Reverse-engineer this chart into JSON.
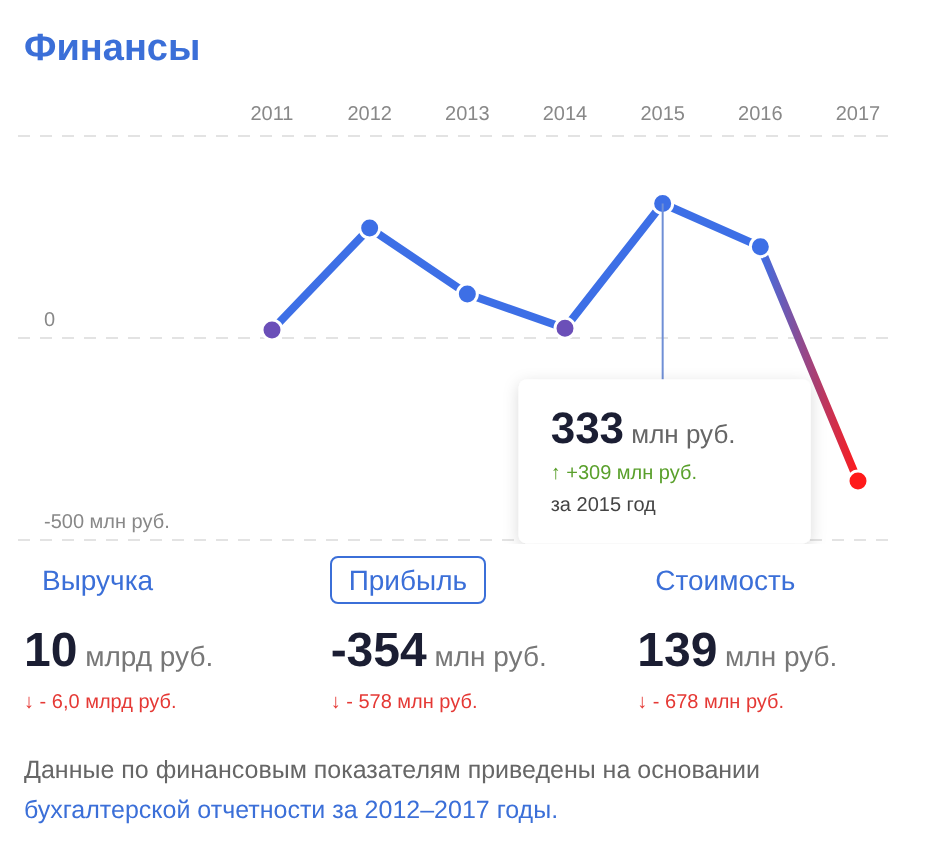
{
  "chart_data": {
    "type": "line",
    "title": "Финансы",
    "categories": [
      "2011",
      "2012",
      "2013",
      "2014",
      "2015",
      "2016",
      "2017"
    ],
    "series": [
      {
        "color": "#3d6fe6",
        "colors": [
          "#6b4fb8",
          "#3d6fe6",
          "#3d6fe6",
          "#6b4fb8",
          "#3d6fe6",
          "#3d6fe6",
          "#ff1a1a"
        ],
        "values": [
          20,
          272,
          109,
          24,
          333,
          226,
          -354
        ]
      }
    ],
    "ylim": [
      -500,
      500
    ],
    "yticks": [
      {
        "value": -500,
        "label": "-500 млн руб."
      },
      0,
      {
        "value": 500,
        "label": null
      }
    ],
    "grid": "y",
    "marker": "circle",
    "line_style": "solid",
    "annotations": [
      {
        "text": "333 млн руб.",
        "x": "2015",
        "y": 333
      },
      "↑ +309 млн руб.",
      "за 2015 год",
      "Выручка",
      "Прибыль",
      "Стоимость",
      "10 млрд руб.",
      "-354 млн руб.",
      "139 млн руб.",
      "↓ - 6,0 млрд руб.",
      "↓ - 578 млн руб.",
      "↓ - 678 млн руб.",
      "Данные по финансовым показателям приведены на основании",
      "бухгалтерской отчетности за 2012–2017 годы."
    ]
  }
}
